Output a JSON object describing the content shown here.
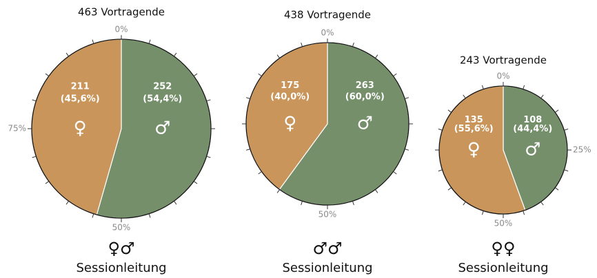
{
  "chart_data": [
    {
      "type": "pie",
      "title": "463 Vortragende",
      "subtitle_symbols": "♀♂",
      "subtitle": "Sessionleitung",
      "categories": [
        "♂",
        "♀"
      ],
      "values": [
        252,
        211
      ],
      "shares": [
        54.4,
        45.6
      ],
      "share_labels": [
        "(54,4%)",
        "(45,6%)"
      ],
      "colors": [
        "#758f6b",
        "#c9955b"
      ],
      "ticks": [
        {
          "value": 0,
          "label": "0%"
        },
        {
          "value": 50,
          "label": "50%"
        },
        {
          "value": 75,
          "label": "75%"
        }
      ],
      "minor_ticks": [
        0,
        5,
        10,
        15,
        20,
        25,
        30,
        35,
        40,
        45,
        50,
        55,
        60,
        65,
        70,
        75,
        80,
        85,
        90,
        95
      ]
    },
    {
      "type": "pie",
      "title": "438 Vortragende",
      "subtitle_symbols": "♂♂",
      "subtitle": "Sessionleitung",
      "categories": [
        "♂",
        "♀"
      ],
      "values": [
        263,
        175
      ],
      "shares": [
        60.0,
        40.0
      ],
      "share_labels": [
        "(60,0%)",
        "(40,0%)"
      ],
      "colors": [
        "#758f6b",
        "#c9955b"
      ],
      "ticks": [
        {
          "value": 0,
          "label": "0%"
        },
        {
          "value": 50,
          "label": "50%"
        }
      ],
      "minor_ticks": [
        0,
        5,
        10,
        15,
        20,
        25,
        30,
        35,
        40,
        45,
        50,
        55,
        60,
        65,
        70,
        75,
        80,
        85,
        90,
        95
      ]
    },
    {
      "type": "pie",
      "title": "243 Vortragende",
      "subtitle_symbols": "♀♀",
      "subtitle": "Sessionleitung",
      "categories": [
        "♂",
        "♀"
      ],
      "values": [
        108,
        135
      ],
      "shares": [
        44.4,
        55.6
      ],
      "share_labels": [
        "(44,4%)",
        "(55,6%)"
      ],
      "colors": [
        "#758f6b",
        "#c9955b"
      ],
      "ticks": [
        {
          "value": 0,
          "label": "0%"
        },
        {
          "value": 25,
          "label": "25%"
        },
        {
          "value": 50,
          "label": "50%"
        }
      ],
      "minor_ticks": [
        0,
        5,
        10,
        15,
        20,
        25,
        30,
        35,
        40,
        45,
        50,
        55,
        60,
        65,
        70,
        75,
        80,
        85,
        90,
        95
      ]
    }
  ]
}
